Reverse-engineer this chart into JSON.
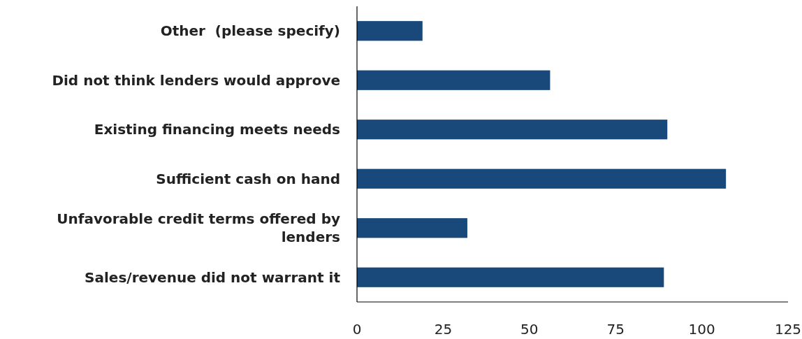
{
  "chart_data": {
    "type": "bar",
    "orientation": "horizontal",
    "categories": [
      "Other  (please specify)",
      "Did not think lenders would approve",
      "Existing financing meets needs",
      "Sufficient cash on hand",
      "Unfavorable credit terms offered by lenders",
      "Sales/revenue did not warrant it"
    ],
    "values": [
      19,
      56,
      90,
      107,
      32,
      89
    ],
    "color": "#18497a",
    "xlim": [
      0,
      125
    ],
    "xticks": [
      0,
      25,
      50,
      75,
      100,
      125
    ],
    "grid": false
  }
}
